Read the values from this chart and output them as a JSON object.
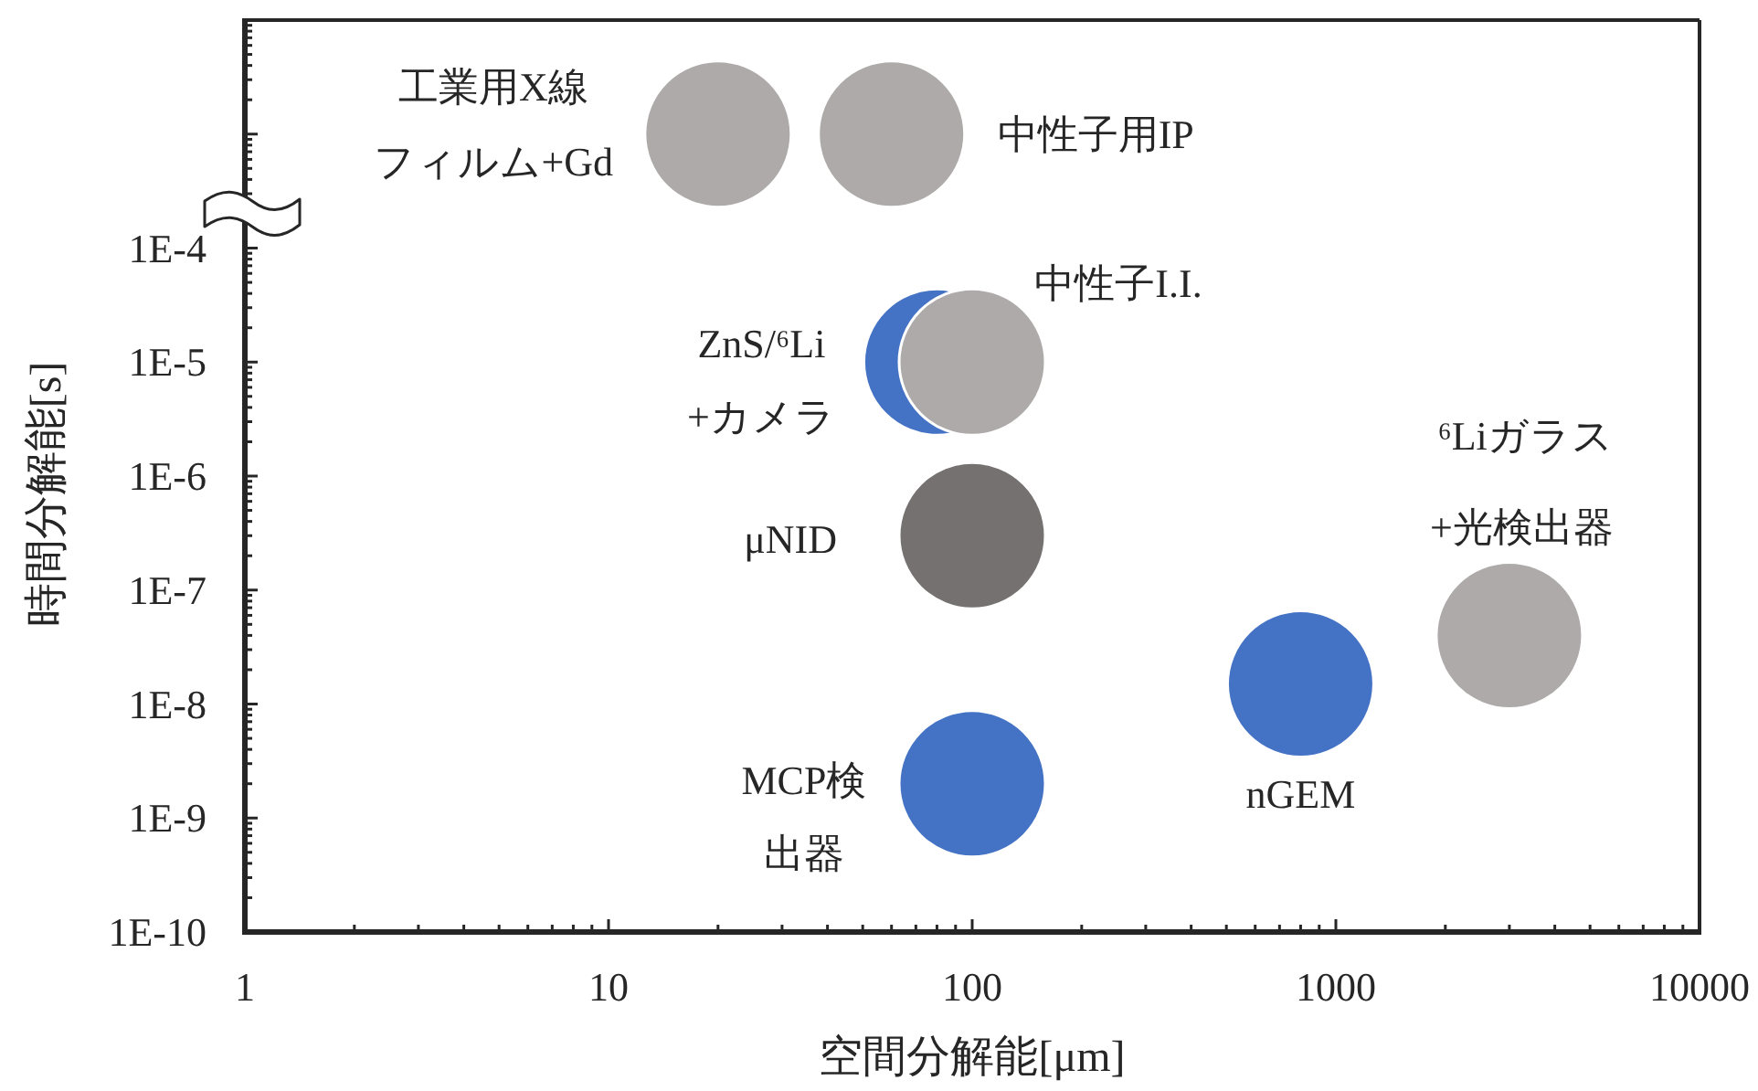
{
  "chart_data": {
    "type": "bubble",
    "xlabel": "空間分解能[μm]",
    "ylabel": "時間分解能[s]",
    "log": "xy",
    "xlim": [
      1,
      10000
    ],
    "xticks": [
      1,
      10,
      100,
      1000,
      10000
    ],
    "ylim": [
      1e-10,
      0.01
    ],
    "yticks": [
      {
        "value": 1e-10,
        "label": "1E-10"
      },
      {
        "value": 1e-09,
        "label": "1E-9"
      },
      {
        "value": 1e-08,
        "label": "1E-8"
      },
      {
        "value": 1e-07,
        "label": "1E-7"
      },
      {
        "value": 1e-06,
        "label": "1E-6"
      },
      {
        "value": 1e-05,
        "label": "1E-5"
      },
      {
        "value": 0.0001,
        "label": "1E-4"
      },
      {
        "value": 0.001,
        "label": null
      },
      {
        "value": 0.01,
        "label": null
      }
    ],
    "series": [
      {
        "name": "工業用X線フィルム+Gd",
        "color": "#aeaaaa",
        "x": [
          20
        ],
        "values": [
          0.001
        ],
        "sizes": [
          1
        ]
      },
      {
        "name": "中性子用IP",
        "color": "#aeaaaa",
        "x": [
          60
        ],
        "values": [
          0.001
        ],
        "sizes": [
          1
        ]
      },
      {
        "name": "ZnS/⁶Li\n+カメラ",
        "color": "#4472c4",
        "x": [
          80
        ],
        "values": [
          1e-05
        ],
        "sizes": [
          1
        ]
      },
      {
        "name": "中性子I.I.",
        "color": "#aeaaaa",
        "x": [
          100
        ],
        "values": [
          1e-05
        ],
        "sizes": [
          1
        ]
      },
      {
        "name": "μNID",
        "color": "#767171",
        "x": [
          100
        ],
        "values": [
          3e-07
        ],
        "sizes": [
          1
        ]
      },
      {
        "name": "MCP検出器",
        "color": "#4472c4",
        "x": [
          100
        ],
        "values": [
          2e-09
        ],
        "sizes": [
          1
        ]
      },
      {
        "name": "nGEM",
        "color": "#4472c4",
        "x": [
          800
        ],
        "values": [
          1.5e-08
        ],
        "sizes": [
          1
        ]
      },
      {
        "name": "⁶Liガラス\n+光検出器",
        "color": "#aeaaaa",
        "x": [
          3000
        ],
        "values": [
          4e-08
        ],
        "sizes": [
          1
        ]
      }
    ]
  }
}
